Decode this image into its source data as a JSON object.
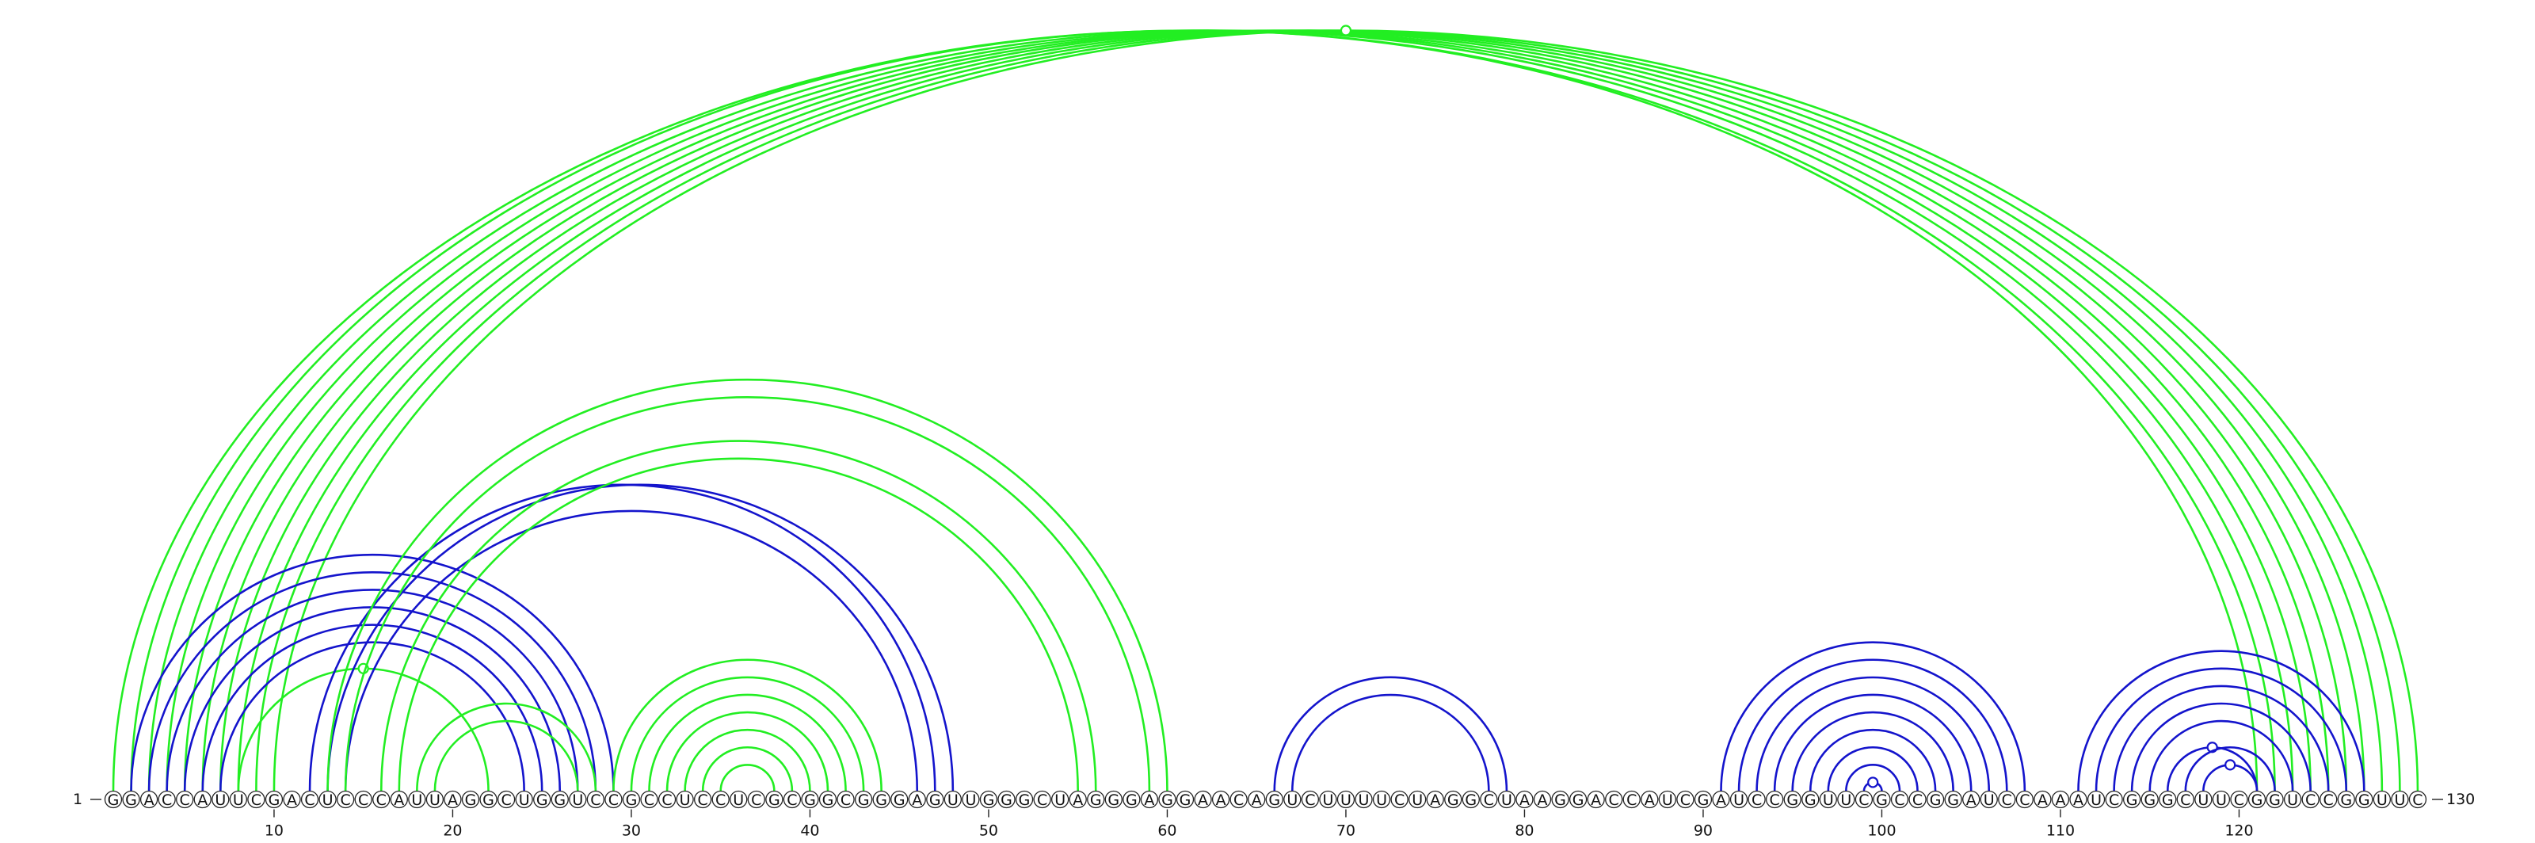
{
  "sequence": "GGACCAUUCGACUCCCAUUAGGCUGGUCCGCCUCCUCGCGGCGGGAGUUGGGCUAGGGAGGAACAGUCUUUUCUAGGCUAAGGACCAUCGAUCCGGUUCGCCGGAUCCAAAUCGGGCUUCGGUCCGGUUC",
  "start_label": "1",
  "end_label": "130",
  "ticks": [
    10,
    20,
    30,
    40,
    50,
    60,
    70,
    80,
    90,
    100,
    110,
    120
  ],
  "colors": {
    "green": "#22ee22",
    "blue": "#1414cc",
    "circle_stroke": "#222222"
  },
  "arcs": [
    {
      "color": "green",
      "pairs": [
        [
          1,
          122
        ],
        [
          2,
          121
        ]
      ]
    },
    {
      "color": "green",
      "pairs": [
        [
          3,
          123
        ],
        [
          4,
          124
        ],
        [
          5,
          125
        ]
      ]
    },
    {
      "color": "green",
      "pairs": [
        [
          6,
          126
        ],
        [
          7,
          127
        ]
      ]
    },
    {
      "color": "green",
      "pairs": [
        [
          8,
          128
        ],
        [
          9,
          129
        ]
      ]
    },
    {
      "color": "green",
      "pairs": [
        [
          10,
          130
        ]
      ],
      "marker": true
    },
    {
      "color": "blue",
      "pairs": [
        [
          2,
          29
        ],
        [
          3,
          28
        ],
        [
          4,
          27
        ],
        [
          5,
          26
        ],
        [
          6,
          25
        ],
        [
          7,
          24
        ]
      ]
    },
    {
      "color": "green",
      "pairs": [
        [
          8,
          22
        ]
      ],
      "marker": true
    },
    {
      "color": "blue",
      "pairs": [
        [
          12,
          47
        ],
        [
          13,
          48
        ],
        [
          14,
          46
        ]
      ]
    },
    {
      "color": "green",
      "pairs": [
        [
          13,
          60
        ],
        [
          14,
          59
        ]
      ]
    },
    {
      "color": "green",
      "pairs": [
        [
          16,
          56
        ],
        [
          17,
          55
        ]
      ]
    },
    {
      "color": "green",
      "pairs": [
        [
          18,
          28
        ],
        [
          19,
          27
        ]
      ]
    },
    {
      "color": "green",
      "pairs": [
        [
          29,
          44
        ],
        [
          30,
          43
        ],
        [
          31,
          42
        ],
        [
          32,
          41
        ],
        [
          33,
          40
        ],
        [
          34,
          39
        ],
        [
          35,
          38
        ]
      ]
    },
    {
      "color": "blue",
      "pairs": [
        [
          66,
          79
        ],
        [
          67,
          78
        ]
      ]
    },
    {
      "color": "blue",
      "pairs": [
        [
          91,
          108
        ],
        [
          92,
          107
        ],
        [
          93,
          106
        ],
        [
          94,
          105
        ],
        [
          95,
          104
        ],
        [
          96,
          103
        ],
        [
          97,
          102
        ],
        [
          98,
          101
        ]
      ]
    },
    {
      "color": "blue",
      "pairs": [
        [
          99,
          100
        ]
      ],
      "marker": true
    },
    {
      "color": "blue",
      "pairs": [
        [
          111,
          127
        ],
        [
          112,
          126
        ],
        [
          113,
          125
        ],
        [
          114,
          124
        ],
        [
          115,
          123
        ]
      ]
    },
    {
      "color": "blue",
      "pairs": [
        [
          116,
          121
        ],
        [
          117,
          122
        ]
      ],
      "marker": true
    },
    {
      "color": "blue",
      "pairs": [
        [
          118,
          121
        ]
      ],
      "marker": true
    }
  ]
}
